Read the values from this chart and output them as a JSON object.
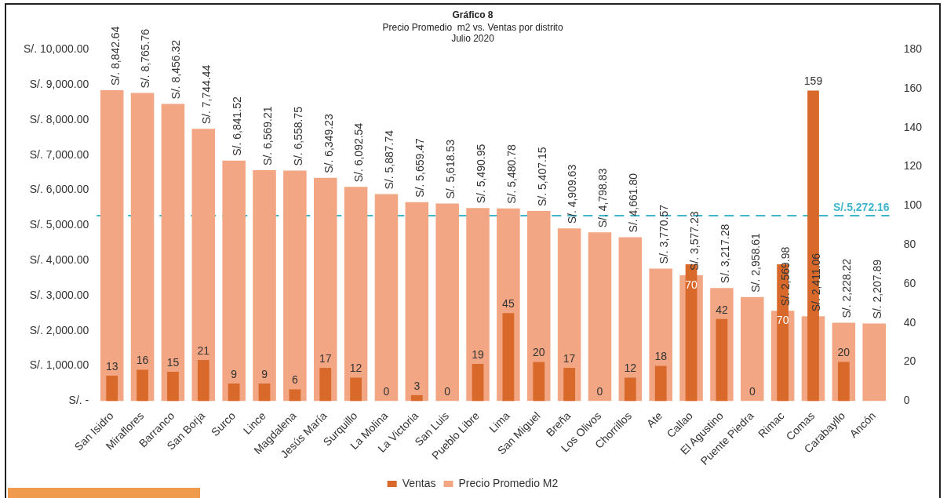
{
  "chart_data": {
    "type": "bar",
    "title": "Gráfico 8",
    "subtitle": [
      "Precio Promedio  m2 vs. Ventas por distrito",
      "Julio 2020"
    ],
    "categories": [
      "San Isidro",
      "Miraflores",
      "Barranco",
      "San Borja",
      "Surco",
      "Lince",
      "Magdalena",
      "Jesús María",
      "Surquillo",
      "La Molina",
      "La Victoria",
      "San Luis",
      "Pueblo Libre",
      "Lima",
      "San Miguel",
      "Breña",
      "Los Olivos",
      "Chorrillos",
      "Ate",
      "Callao",
      "El Agustino",
      "Puente Piedra",
      "Rimac",
      "Comas",
      "Carabayllo",
      "Ancón"
    ],
    "series": [
      {
        "name": "Precio Promedio M2",
        "color": "#f2a683",
        "values": [
          8842.64,
          8765.76,
          8456.32,
          7744.44,
          6841.52,
          6569.21,
          6558.75,
          6349.23,
          6092.54,
          5887.74,
          5659.47,
          5618.53,
          5490.95,
          5480.78,
          5407.15,
          4909.63,
          4798.83,
          4661.8,
          3770.57,
          3577.23,
          3217.28,
          2958.61,
          2569.98,
          2411.06,
          2228.22,
          2207.89
        ],
        "value_labels": [
          "S/. 8,842.64",
          "S/. 8,765.76",
          "S/. 8,456.32",
          "S/. 7,744.44",
          "S/. 6,841.52",
          "S/. 6,569.21",
          "S/. 6,558.75",
          "S/. 6,349.23",
          "S/. 6,092.54",
          "S/. 5,887.74",
          "S/. 5,659.47",
          "S/. 5,618.53",
          "S/. 5,490.95",
          "S/. 5,480.78",
          "S/. 5,407.15",
          "S/. 4,909.63",
          "S/. 4,798.83",
          "S/. 4,661.80",
          "S/. 3,770.57",
          "S/. 3,577.23",
          "S/. 3,217.28",
          "S/. 2,958.61",
          "S/. 2,569.98",
          "S/. 2,411.06",
          "S/. 2,228.22",
          "S/. 2,207.89"
        ]
      },
      {
        "name": "Ventas",
        "color": "#d9692a",
        "axis": "y2",
        "values": [
          13,
          16,
          15,
          21,
          9,
          9,
          6,
          17,
          12,
          0,
          3,
          0,
          19,
          45,
          20,
          17,
          0,
          12,
          18,
          70,
          42,
          0,
          70,
          159,
          20,
          null
        ],
        "value_labels": [
          "13",
          "16",
          "15",
          "21",
          "9",
          "9",
          "6",
          "17",
          "12",
          "0",
          "3",
          "0",
          "19",
          "45",
          "20",
          "17",
          "0",
          "12",
          "18",
          "70",
          "42",
          "0",
          "70",
          "159",
          "20",
          null
        ]
      }
    ],
    "ylim": [
      0,
      10000
    ],
    "yticks": [
      {
        "value": 0,
        "label": "S/. -"
      },
      {
        "value": 1000,
        "label": "S/. 1,000.00"
      },
      {
        "value": 2000,
        "label": "S/. 2,000.00"
      },
      {
        "value": 3000,
        "label": "S/. 3,000.00"
      },
      {
        "value": 4000,
        "label": "S/. 4,000.00"
      },
      {
        "value": 5000,
        "label": "S/. 5,000.00"
      },
      {
        "value": 6000,
        "label": "S/. 6,000.00"
      },
      {
        "value": 7000,
        "label": "S/. 7,000.00"
      },
      {
        "value": 8000,
        "label": "S/. 8,000.00"
      },
      {
        "value": 9000,
        "label": "S/. 9,000.00"
      },
      {
        "value": 10000,
        "label": "S/. 10,000.00"
      }
    ],
    "y2lim": [
      0,
      180
    ],
    "y2ticks": [
      0,
      20,
      40,
      60,
      80,
      100,
      120,
      140,
      160,
      180
    ],
    "ref_lines": [
      {
        "axis": "y",
        "value": 5272.16,
        "label": "S/.5,272.16",
        "color": "#3fb6cc",
        "line_style": "dashed"
      }
    ],
    "grid": false,
    "legend": "bottom"
  }
}
